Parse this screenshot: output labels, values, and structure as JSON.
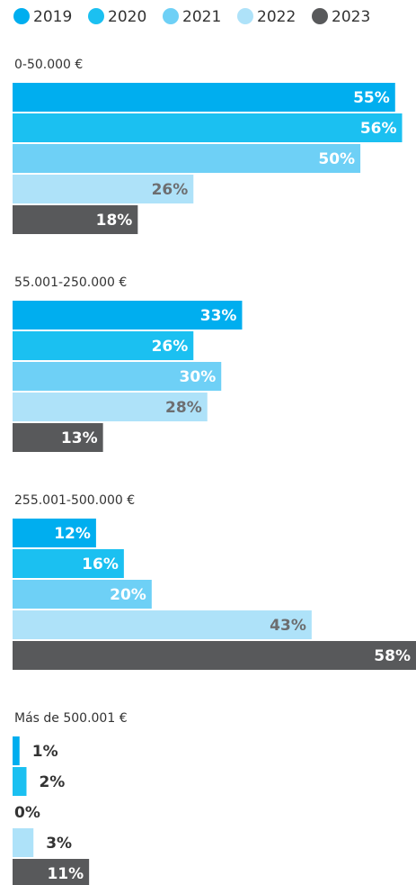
{
  "chart_data": {
    "type": "bar",
    "orientation": "horizontal",
    "categories": [
      "0-50.000 €",
      "55.001-250.000 €",
      "255.001-500.000 €",
      "Más de 500.001 €"
    ],
    "series": [
      {
        "name": "2019",
        "color": "#00aeef",
        "values": [
          55,
          33,
          12,
          1
        ],
        "value_labels": [
          "55%",
          "33%",
          "12%",
          "1%"
        ]
      },
      {
        "name": "2020",
        "color": "#1bc0f1",
        "values": [
          56,
          26,
          16,
          2
        ],
        "value_labels": [
          "56%",
          "26%",
          "16%",
          "2%"
        ]
      },
      {
        "name": "2021",
        "color": "#6ed0f6",
        "values": [
          50,
          30,
          20,
          0
        ],
        "value_labels": [
          "50%",
          "30%",
          "20%",
          "0%"
        ]
      },
      {
        "name": "2022",
        "color": "#aee2f9",
        "values": [
          26,
          28,
          43,
          3
        ],
        "value_labels": [
          "26%",
          "28%",
          "43%",
          "3%"
        ]
      },
      {
        "name": "2023",
        "color": "#58595b",
        "values": [
          18,
          13,
          58,
          11
        ],
        "value_labels": [
          "18%",
          "13%",
          "58%",
          "11%"
        ]
      }
    ]
  }
}
